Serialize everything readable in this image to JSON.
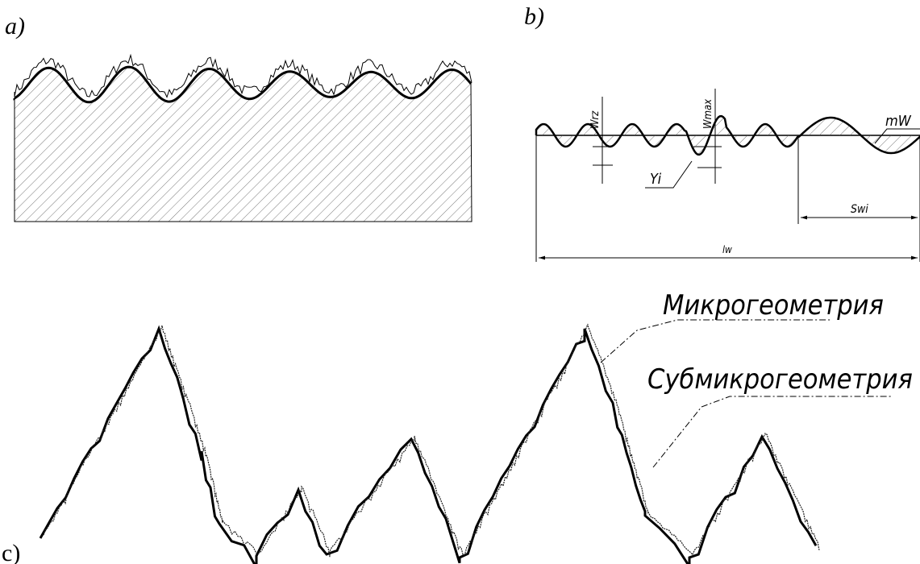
{
  "panels": {
    "a": {
      "label": "a)"
    },
    "b": {
      "label": "b)",
      "wrz": "Wrz",
      "wmax": "Wmax",
      "mw": "mW",
      "yi": "Yi",
      "swi": "Swi",
      "lw": "lw"
    },
    "c": {
      "label": "c)",
      "micro": "Микрогеометрия",
      "submicro": "Субмикрогеометрия"
    }
  }
}
